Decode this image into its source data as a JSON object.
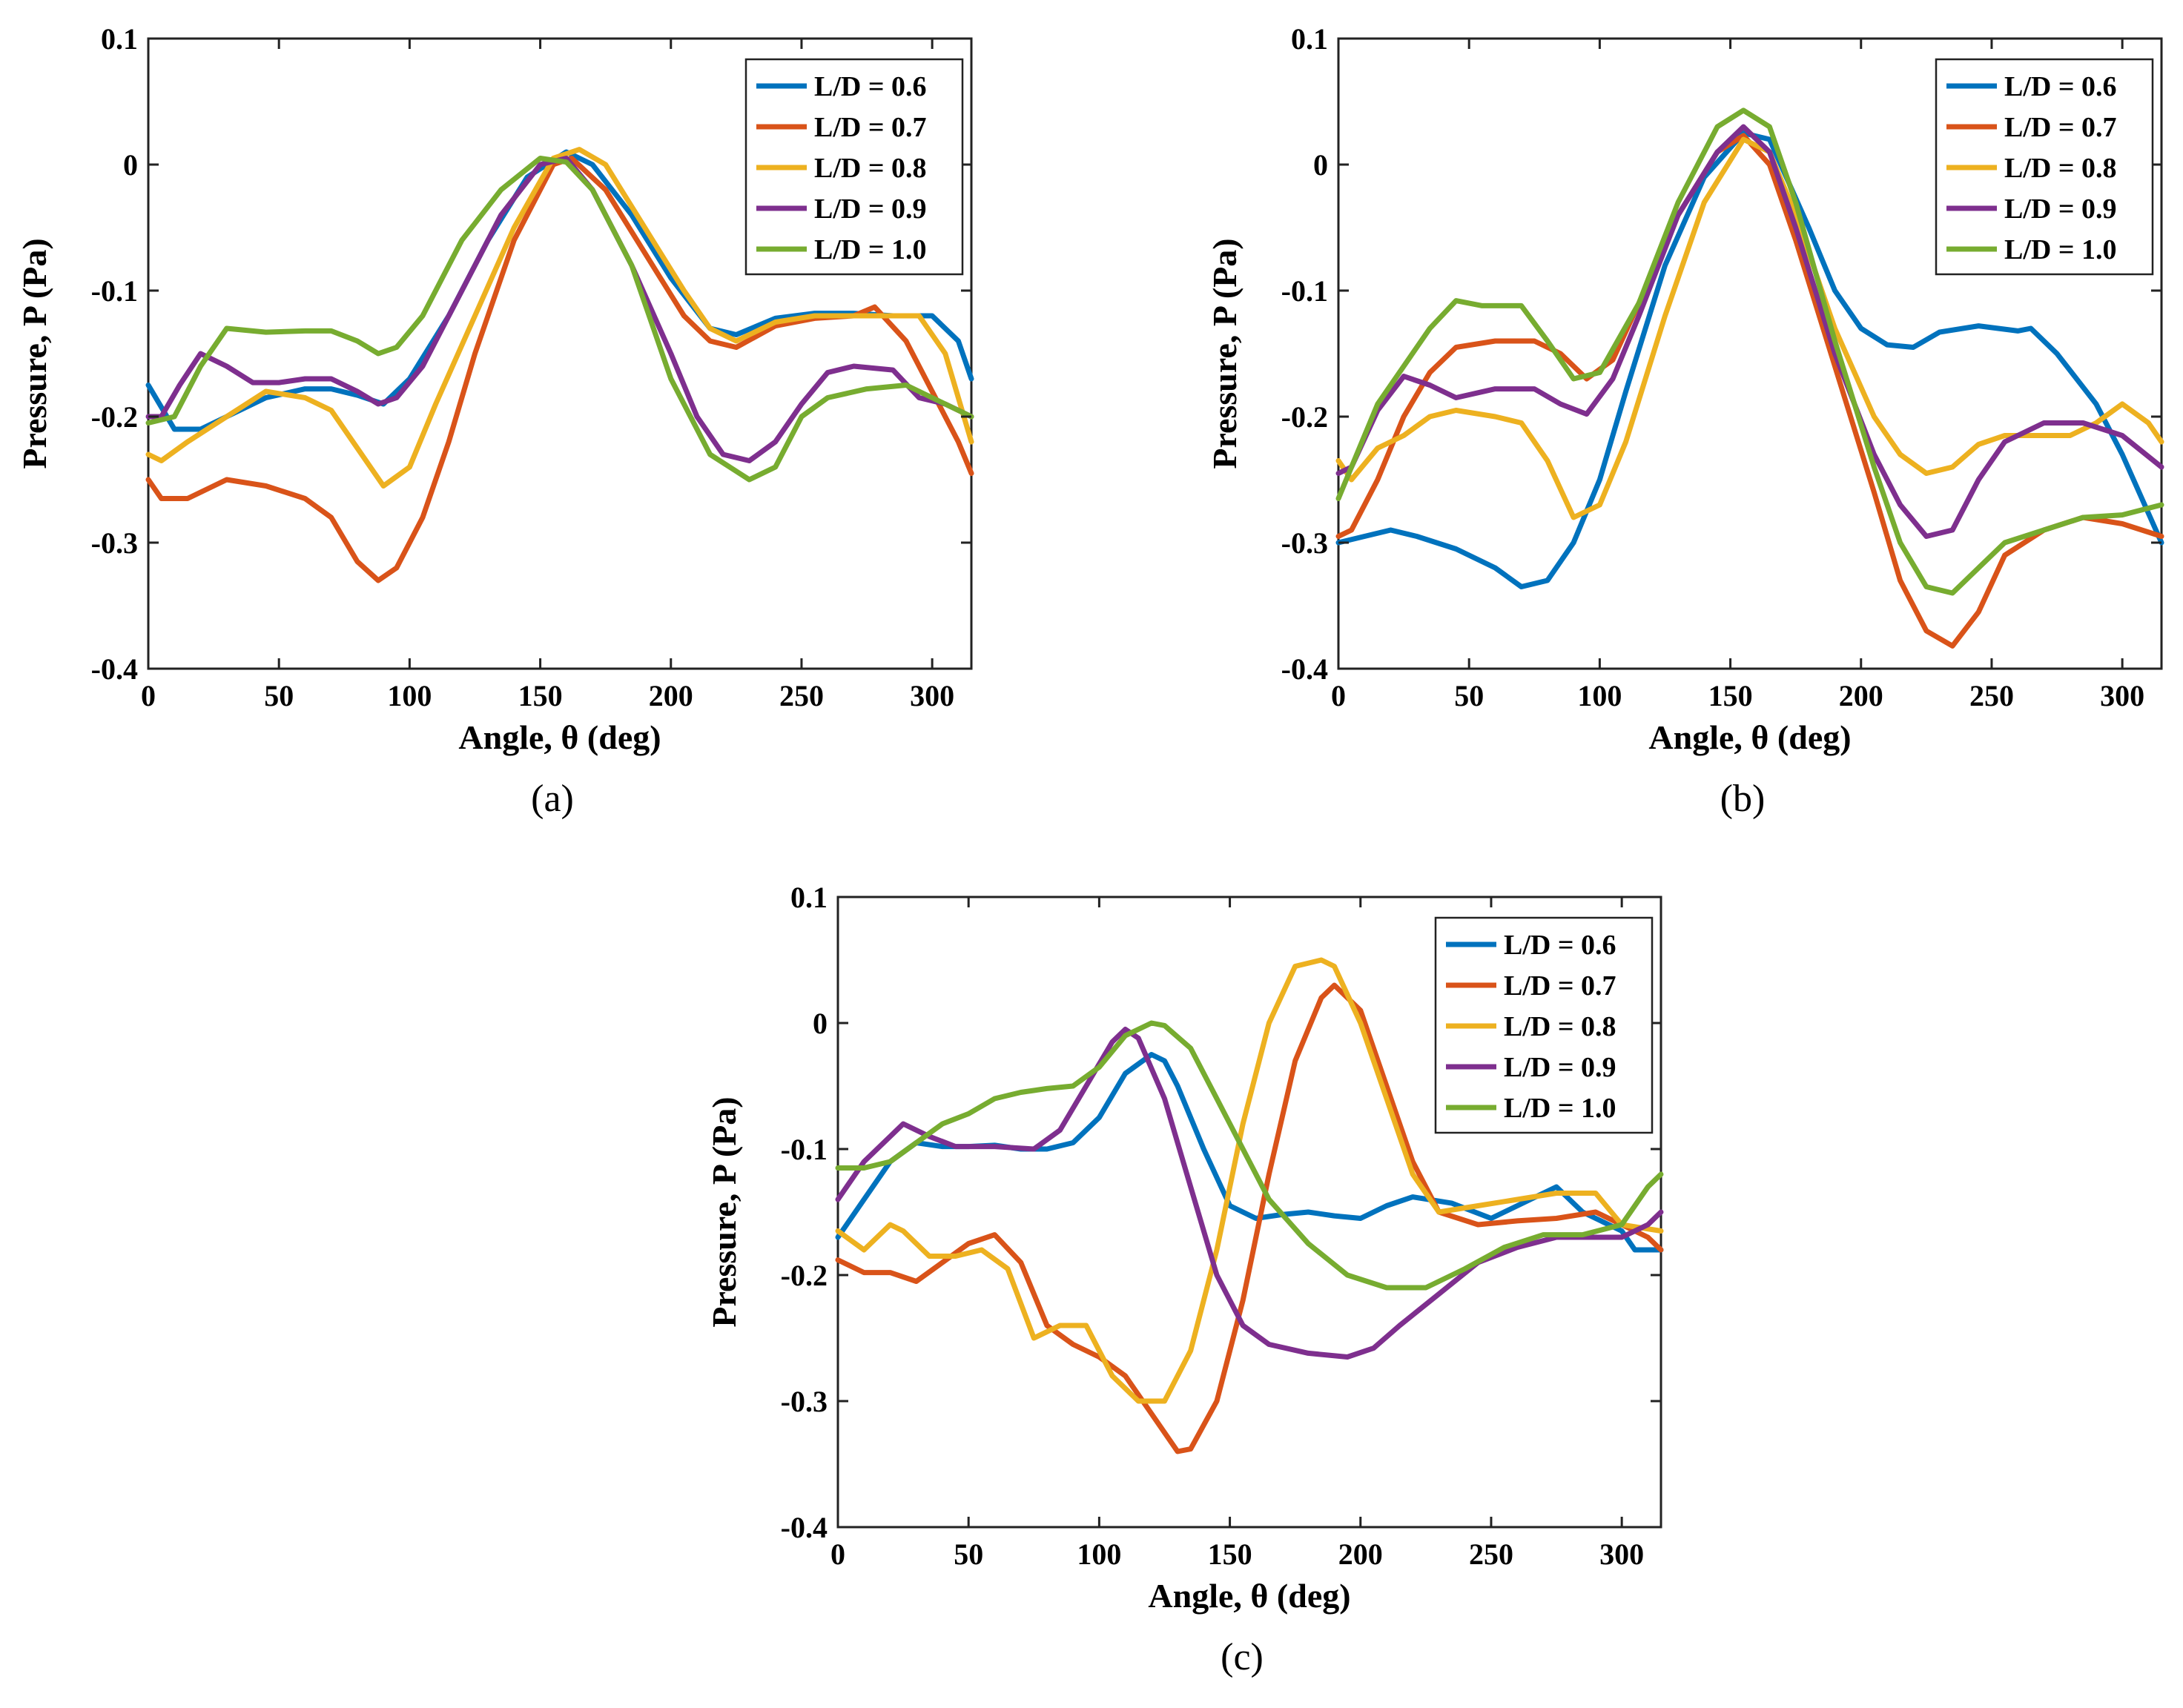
{
  "figure": {
    "panels": [
      "a",
      "b",
      "c"
    ]
  },
  "colors": [
    "#0072BD",
    "#D95319",
    "#EDB120",
    "#7E2F8E",
    "#77AC30"
  ],
  "chart_data": [
    {
      "type": "line",
      "caption": "(a)",
      "xlabel": "Angle, θ (deg)",
      "ylabel": "Pressure, P (Pa)",
      "xlim": [
        0,
        315
      ],
      "ylim": [
        -0.4,
        0.1
      ],
      "xticks": [
        0,
        50,
        100,
        150,
        200,
        250,
        300
      ],
      "yticks": [
        -0.4,
        -0.3,
        -0.2,
        -0.1,
        0,
        0.1
      ],
      "legend": "top-right",
      "series": [
        {
          "name": "L/D = 0.6",
          "x": [
            0,
            10,
            20,
            30,
            45,
            60,
            70,
            80,
            90,
            100,
            115,
            130,
            145,
            160,
            170,
            185,
            200,
            215,
            225,
            240,
            255,
            270,
            285,
            300,
            310,
            315
          ],
          "y": [
            -0.175,
            -0.21,
            -0.21,
            -0.2,
            -0.185,
            -0.178,
            -0.178,
            -0.183,
            -0.19,
            -0.17,
            -0.12,
            -0.06,
            -0.01,
            0.01,
            0.0,
            -0.04,
            -0.09,
            -0.13,
            -0.135,
            -0.122,
            -0.118,
            -0.118,
            -0.12,
            -0.12,
            -0.14,
            -0.17
          ]
        },
        {
          "name": "L/D = 0.7",
          "x": [
            0,
            5,
            15,
            30,
            45,
            60,
            70,
            80,
            88,
            95,
            105,
            115,
            125,
            140,
            155,
            162,
            175,
            190,
            205,
            215,
            225,
            240,
            255,
            270,
            278,
            290,
            300,
            310,
            315
          ],
          "y": [
            -0.25,
            -0.265,
            -0.265,
            -0.25,
            -0.255,
            -0.265,
            -0.28,
            -0.315,
            -0.33,
            -0.32,
            -0.28,
            -0.22,
            -0.15,
            -0.06,
            0.0,
            0.005,
            -0.02,
            -0.07,
            -0.12,
            -0.14,
            -0.145,
            -0.128,
            -0.122,
            -0.12,
            -0.113,
            -0.14,
            -0.18,
            -0.22,
            -0.245
          ]
        },
        {
          "name": "L/D = 0.8",
          "x": [
            0,
            5,
            15,
            30,
            45,
            60,
            70,
            80,
            90,
            100,
            110,
            125,
            140,
            155,
            165,
            175,
            190,
            205,
            215,
            225,
            240,
            255,
            270,
            285,
            295,
            305,
            315
          ],
          "y": [
            -0.23,
            -0.235,
            -0.22,
            -0.2,
            -0.18,
            -0.185,
            -0.195,
            -0.225,
            -0.255,
            -0.24,
            -0.19,
            -0.12,
            -0.05,
            0.005,
            0.012,
            0.0,
            -0.05,
            -0.1,
            -0.13,
            -0.14,
            -0.125,
            -0.12,
            -0.12,
            -0.12,
            -0.12,
            -0.15,
            -0.22
          ]
        },
        {
          "name": "L/D = 0.9",
          "x": [
            0,
            5,
            12,
            20,
            30,
            40,
            50,
            60,
            70,
            80,
            88,
            95,
            105,
            120,
            135,
            150,
            160,
            170,
            185,
            200,
            210,
            220,
            230,
            240,
            250,
            260,
            270,
            285,
            295,
            305,
            315
          ],
          "y": [
            -0.2,
            -0.2,
            -0.175,
            -0.15,
            -0.16,
            -0.173,
            -0.173,
            -0.17,
            -0.17,
            -0.18,
            -0.19,
            -0.185,
            -0.16,
            -0.1,
            -0.04,
            0.0,
            0.005,
            -0.02,
            -0.08,
            -0.15,
            -0.2,
            -0.23,
            -0.235,
            -0.22,
            -0.19,
            -0.165,
            -0.16,
            -0.163,
            -0.185,
            -0.19,
            -0.2
          ]
        },
        {
          "name": "L/D = 1.0",
          "x": [
            0,
            10,
            20,
            30,
            45,
            60,
            70,
            80,
            88,
            95,
            105,
            120,
            135,
            150,
            160,
            170,
            185,
            200,
            215,
            230,
            240,
            250,
            260,
            275,
            290,
            300,
            315
          ],
          "y": [
            -0.205,
            -0.2,
            -0.16,
            -0.13,
            -0.133,
            -0.132,
            -0.132,
            -0.14,
            -0.15,
            -0.145,
            -0.12,
            -0.06,
            -0.02,
            0.005,
            0.002,
            -0.02,
            -0.08,
            -0.17,
            -0.23,
            -0.25,
            -0.24,
            -0.2,
            -0.185,
            -0.178,
            -0.175,
            -0.185,
            -0.2
          ]
        }
      ]
    },
    {
      "type": "line",
      "caption": "(b)",
      "xlabel": "Angle, θ (deg)",
      "ylabel": "Pressure, P (Pa)",
      "xlim": [
        0,
        315
      ],
      "ylim": [
        -0.4,
        0.1
      ],
      "xticks": [
        0,
        50,
        100,
        150,
        200,
        250,
        300
      ],
      "yticks": [
        -0.4,
        -0.3,
        -0.2,
        -0.1,
        0,
        0.1
      ],
      "legend": "top-right",
      "series": [
        {
          "name": "L/D = 0.6",
          "x": [
            0,
            10,
            20,
            30,
            45,
            60,
            70,
            80,
            90,
            100,
            110,
            125,
            140,
            155,
            165,
            180,
            190,
            200,
            210,
            220,
            230,
            245,
            260,
            265,
            275,
            290,
            300,
            315
          ],
          "y": [
            -0.3,
            -0.295,
            -0.29,
            -0.295,
            -0.305,
            -0.32,
            -0.335,
            -0.33,
            -0.3,
            -0.25,
            -0.18,
            -0.08,
            -0.01,
            0.025,
            0.02,
            -0.05,
            -0.1,
            -0.13,
            -0.143,
            -0.145,
            -0.133,
            -0.128,
            -0.132,
            -0.13,
            -0.15,
            -0.19,
            -0.23,
            -0.3
          ]
        },
        {
          "name": "L/D = 0.7",
          "x": [
            0,
            5,
            15,
            25,
            35,
            45,
            60,
            75,
            85,
            95,
            105,
            115,
            130,
            145,
            155,
            165,
            175,
            190,
            205,
            215,
            225,
            235,
            245,
            255,
            270,
            285,
            300,
            315
          ],
          "y": [
            -0.295,
            -0.29,
            -0.25,
            -0.2,
            -0.165,
            -0.145,
            -0.14,
            -0.14,
            -0.15,
            -0.17,
            -0.155,
            -0.11,
            -0.04,
            0.01,
            0.023,
            0.0,
            -0.06,
            -0.16,
            -0.26,
            -0.33,
            -0.37,
            -0.382,
            -0.355,
            -0.31,
            -0.29,
            -0.28,
            -0.285,
            -0.295
          ]
        },
        {
          "name": "L/D = 0.8",
          "x": [
            0,
            5,
            15,
            25,
            35,
            45,
            60,
            70,
            80,
            90,
            100,
            110,
            125,
            140,
            155,
            165,
            175,
            190,
            205,
            215,
            225,
            235,
            245,
            255,
            265,
            280,
            290,
            300,
            310,
            315
          ],
          "y": [
            -0.235,
            -0.25,
            -0.225,
            -0.215,
            -0.2,
            -0.195,
            -0.2,
            -0.205,
            -0.235,
            -0.28,
            -0.27,
            -0.22,
            -0.12,
            -0.03,
            0.02,
            0.01,
            -0.04,
            -0.13,
            -0.2,
            -0.23,
            -0.245,
            -0.24,
            -0.222,
            -0.215,
            -0.215,
            -0.215,
            -0.205,
            -0.19,
            -0.205,
            -0.22
          ]
        },
        {
          "name": "L/D = 0.9",
          "x": [
            0,
            5,
            15,
            25,
            35,
            45,
            60,
            75,
            85,
            95,
            105,
            115,
            130,
            145,
            155,
            165,
            175,
            190,
            205,
            215,
            225,
            235,
            245,
            255,
            270,
            285,
            300,
            315
          ],
          "y": [
            -0.245,
            -0.24,
            -0.195,
            -0.168,
            -0.175,
            -0.185,
            -0.178,
            -0.178,
            -0.19,
            -0.198,
            -0.17,
            -0.12,
            -0.04,
            0.01,
            0.03,
            0.01,
            -0.05,
            -0.15,
            -0.23,
            -0.27,
            -0.295,
            -0.29,
            -0.25,
            -0.22,
            -0.205,
            -0.205,
            -0.215,
            -0.24
          ]
        },
        {
          "name": "L/D = 1.0",
          "x": [
            0,
            5,
            15,
            25,
            35,
            45,
            55,
            70,
            80,
            90,
            100,
            115,
            130,
            145,
            155,
            165,
            175,
            190,
            205,
            215,
            225,
            235,
            245,
            255,
            270,
            285,
            300,
            315
          ],
          "y": [
            -0.265,
            -0.24,
            -0.19,
            -0.16,
            -0.13,
            -0.108,
            -0.112,
            -0.112,
            -0.14,
            -0.17,
            -0.165,
            -0.11,
            -0.03,
            0.03,
            0.043,
            0.03,
            -0.03,
            -0.14,
            -0.24,
            -0.3,
            -0.335,
            -0.34,
            -0.32,
            -0.3,
            -0.29,
            -0.28,
            -0.278,
            -0.27
          ]
        }
      ]
    },
    {
      "type": "line",
      "caption": "(c)",
      "xlabel": "Angle, θ (deg)",
      "ylabel": "Pressure, P (Pa)",
      "xlim": [
        0,
        315
      ],
      "ylim": [
        -0.4,
        0.1
      ],
      "xticks": [
        0,
        50,
        100,
        150,
        200,
        250,
        300
      ],
      "yticks": [
        -0.4,
        -0.3,
        -0.2,
        -0.1,
        0,
        0.1
      ],
      "legend": "top-right",
      "series": [
        {
          "name": "L/D = 0.6",
          "x": [
            0,
            10,
            20,
            30,
            40,
            50,
            60,
            70,
            80,
            90,
            100,
            110,
            120,
            125,
            130,
            140,
            150,
            160,
            170,
            180,
            190,
            200,
            210,
            220,
            235,
            250,
            265,
            275,
            285,
            300,
            305,
            315
          ],
          "y": [
            -0.17,
            -0.14,
            -0.11,
            -0.095,
            -0.098,
            -0.098,
            -0.097,
            -0.1,
            -0.1,
            -0.095,
            -0.075,
            -0.04,
            -0.025,
            -0.03,
            -0.05,
            -0.1,
            -0.145,
            -0.155,
            -0.152,
            -0.15,
            -0.153,
            -0.155,
            -0.145,
            -0.138,
            -0.143,
            -0.155,
            -0.14,
            -0.13,
            -0.15,
            -0.165,
            -0.18,
            -0.18
          ]
        },
        {
          "name": "L/D = 0.7",
          "x": [
            0,
            10,
            20,
            30,
            40,
            50,
            60,
            70,
            80,
            90,
            100,
            110,
            120,
            130,
            135,
            145,
            155,
            165,
            175,
            185,
            190,
            200,
            210,
            220,
            230,
            245,
            260,
            275,
            290,
            300,
            310,
            315
          ],
          "y": [
            -0.188,
            -0.198,
            -0.198,
            -0.205,
            -0.19,
            -0.175,
            -0.168,
            -0.19,
            -0.24,
            -0.255,
            -0.265,
            -0.28,
            -0.31,
            -0.34,
            -0.338,
            -0.3,
            -0.22,
            -0.12,
            -0.03,
            0.02,
            0.03,
            0.01,
            -0.05,
            -0.11,
            -0.15,
            -0.16,
            -0.157,
            -0.155,
            -0.15,
            -0.16,
            -0.17,
            -0.18
          ]
        },
        {
          "name": "L/D = 0.8",
          "x": [
            0,
            10,
            20,
            25,
            35,
            45,
            55,
            65,
            75,
            85,
            95,
            105,
            115,
            125,
            135,
            145,
            155,
            165,
            175,
            185,
            190,
            200,
            210,
            220,
            230,
            245,
            260,
            275,
            290,
            300,
            315
          ],
          "y": [
            -0.165,
            -0.18,
            -0.16,
            -0.165,
            -0.185,
            -0.185,
            -0.18,
            -0.195,
            -0.25,
            -0.24,
            -0.24,
            -0.28,
            -0.3,
            -0.3,
            -0.26,
            -0.18,
            -0.08,
            0.0,
            0.045,
            0.05,
            0.045,
            0.0,
            -0.06,
            -0.12,
            -0.15,
            -0.145,
            -0.14,
            -0.135,
            -0.135,
            -0.16,
            -0.165
          ]
        },
        {
          "name": "L/D = 0.9",
          "x": [
            0,
            10,
            20,
            25,
            35,
            45,
            60,
            75,
            85,
            95,
            105,
            110,
            115,
            125,
            135,
            145,
            155,
            165,
            180,
            195,
            205,
            215,
            230,
            245,
            260,
            275,
            290,
            300,
            310,
            315
          ],
          "y": [
            -0.14,
            -0.11,
            -0.09,
            -0.08,
            -0.09,
            -0.098,
            -0.098,
            -0.1,
            -0.085,
            -0.05,
            -0.015,
            -0.005,
            -0.012,
            -0.06,
            -0.13,
            -0.2,
            -0.24,
            -0.255,
            -0.262,
            -0.265,
            -0.258,
            -0.24,
            -0.215,
            -0.19,
            -0.178,
            -0.17,
            -0.17,
            -0.17,
            -0.16,
            -0.15
          ]
        },
        {
          "name": "L/D = 1.0",
          "x": [
            0,
            10,
            20,
            30,
            40,
            50,
            60,
            70,
            80,
            90,
            100,
            110,
            120,
            125,
            135,
            145,
            155,
            165,
            180,
            195,
            210,
            225,
            240,
            255,
            270,
            285,
            300,
            310,
            315
          ],
          "y": [
            -0.115,
            -0.115,
            -0.11,
            -0.095,
            -0.08,
            -0.072,
            -0.06,
            -0.055,
            -0.052,
            -0.05,
            -0.035,
            -0.01,
            0.0,
            -0.002,
            -0.02,
            -0.06,
            -0.1,
            -0.14,
            -0.175,
            -0.2,
            -0.21,
            -0.21,
            -0.195,
            -0.178,
            -0.168,
            -0.168,
            -0.16,
            -0.13,
            -0.12
          ]
        }
      ]
    }
  ]
}
